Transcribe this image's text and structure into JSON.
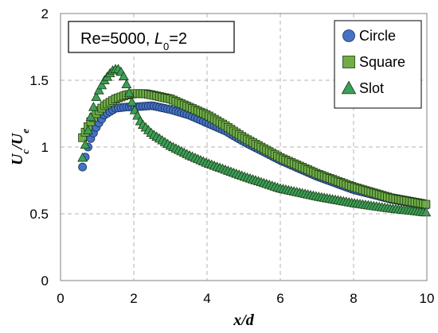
{
  "chart_data": {
    "type": "scatter",
    "annotation": {
      "prefix": "Re=5000, ",
      "var": "L",
      "sub": "0",
      "suffix": "=2"
    },
    "xlabel": "x/d",
    "ylabel": {
      "main1": "U",
      "sub1": "c",
      "slash": "/",
      "main2": "U",
      "sub2": "e"
    },
    "xlim": [
      0,
      10
    ],
    "ylim": [
      0,
      2
    ],
    "xticks": [
      0,
      2,
      4,
      6,
      8,
      10
    ],
    "yticks": [
      0,
      0.5,
      1,
      1.5,
      2
    ],
    "xtick_labels": [
      "0",
      "2",
      "4",
      "6",
      "8",
      "10"
    ],
    "ytick_labels": [
      "0",
      "0.5",
      "1",
      "1.5",
      "2"
    ],
    "grid": true,
    "legend_position": "top-right",
    "series": [
      {
        "name": "Circle",
        "marker": "circle",
        "fill": "#4472C4",
        "x": [
          0.6,
          0.8,
          1.0,
          1.2,
          1.5,
          1.8,
          2.0,
          2.5,
          3.0,
          3.5,
          4.0,
          4.5,
          5.0,
          6.0,
          7.0,
          8.0,
          9.0,
          10.0
        ],
        "y": [
          0.85,
          1.05,
          1.16,
          1.24,
          1.29,
          1.3,
          1.3,
          1.31,
          1.28,
          1.24,
          1.18,
          1.12,
          1.04,
          0.9,
          0.78,
          0.68,
          0.61,
          0.56
        ]
      },
      {
        "name": "Square",
        "marker": "square",
        "fill": "#70AD47",
        "x": [
          0.6,
          0.8,
          1.0,
          1.2,
          1.5,
          1.8,
          2.0,
          2.3,
          2.5,
          3.0,
          3.5,
          4.0,
          4.5,
          5.0,
          6.0,
          7.0,
          8.0,
          9.0,
          10.0
        ],
        "y": [
          1.07,
          1.18,
          1.26,
          1.31,
          1.36,
          1.39,
          1.4,
          1.4,
          1.39,
          1.36,
          1.3,
          1.24,
          1.16,
          1.07,
          0.92,
          0.8,
          0.7,
          0.62,
          0.57
        ]
      },
      {
        "name": "Slot",
        "marker": "triangle",
        "fill": "#3C9F5A",
        "x": [
          0.6,
          0.7,
          0.8,
          1.0,
          1.2,
          1.4,
          1.55,
          1.7,
          1.85,
          2.0,
          2.2,
          2.5,
          3.0,
          3.5,
          4.0,
          4.5,
          5.0,
          6.0,
          7.0,
          8.0,
          9.0,
          10.0
        ],
        "y": [
          0.92,
          1.05,
          1.2,
          1.4,
          1.5,
          1.57,
          1.59,
          1.55,
          1.43,
          1.29,
          1.18,
          1.1,
          1.01,
          0.94,
          0.88,
          0.83,
          0.78,
          0.69,
          0.63,
          0.58,
          0.54,
          0.51
        ]
      }
    ]
  }
}
